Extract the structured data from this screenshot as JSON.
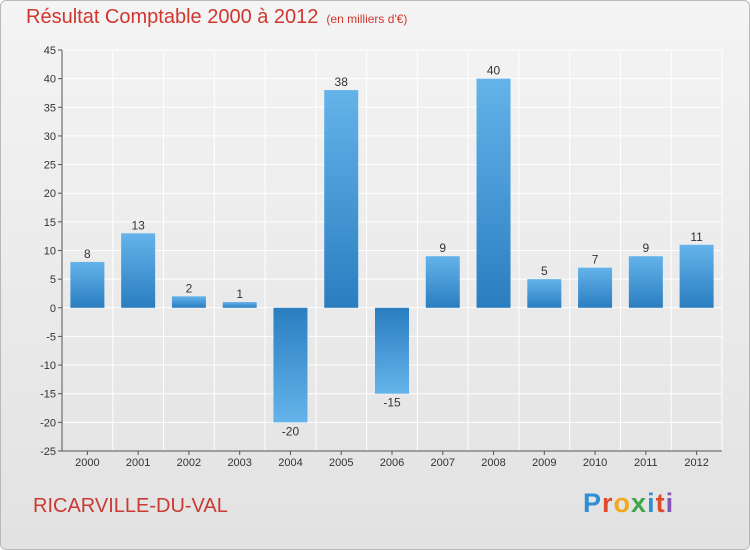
{
  "chart_data": {
    "type": "bar",
    "title": "Résultat Comptable 2000 à 2012",
    "unit": "(en milliers d'€)",
    "categories": [
      "2000",
      "2001",
      "2002",
      "2003",
      "2004",
      "2005",
      "2006",
      "2007",
      "2008",
      "2009",
      "2010",
      "2011",
      "2012"
    ],
    "values": [
      8,
      13,
      2,
      1,
      -20,
      38,
      -15,
      9,
      40,
      5,
      7,
      9,
      11
    ],
    "ylim": [
      -25,
      45
    ],
    "yticks": [
      -25,
      -20,
      -15,
      -10,
      -5,
      0,
      5,
      10,
      15,
      20,
      25,
      30,
      35,
      40,
      45
    ],
    "grid": true,
    "xlabel": "",
    "ylabel": ""
  },
  "footer": {
    "town": "RICARVILLE-DU-VAL",
    "brand_letters": [
      {
        "ch": "P",
        "color": "#2f8fd6"
      },
      {
        "ch": "r",
        "color": "#e14a2c"
      },
      {
        "ch": "o",
        "color": "#f2a81d"
      },
      {
        "ch": "x",
        "color": "#3fa74a"
      },
      {
        "ch": "i",
        "color": "#2f8fd6"
      },
      {
        "ch": "t",
        "color": "#e14a2c"
      },
      {
        "ch": "i",
        "color": "#8a55b8"
      }
    ]
  },
  "colors": {
    "bar_dark": "#2a7ec0",
    "bar_light": "#64b3ea",
    "grid": "#ffffff",
    "title": "#d0362e"
  }
}
